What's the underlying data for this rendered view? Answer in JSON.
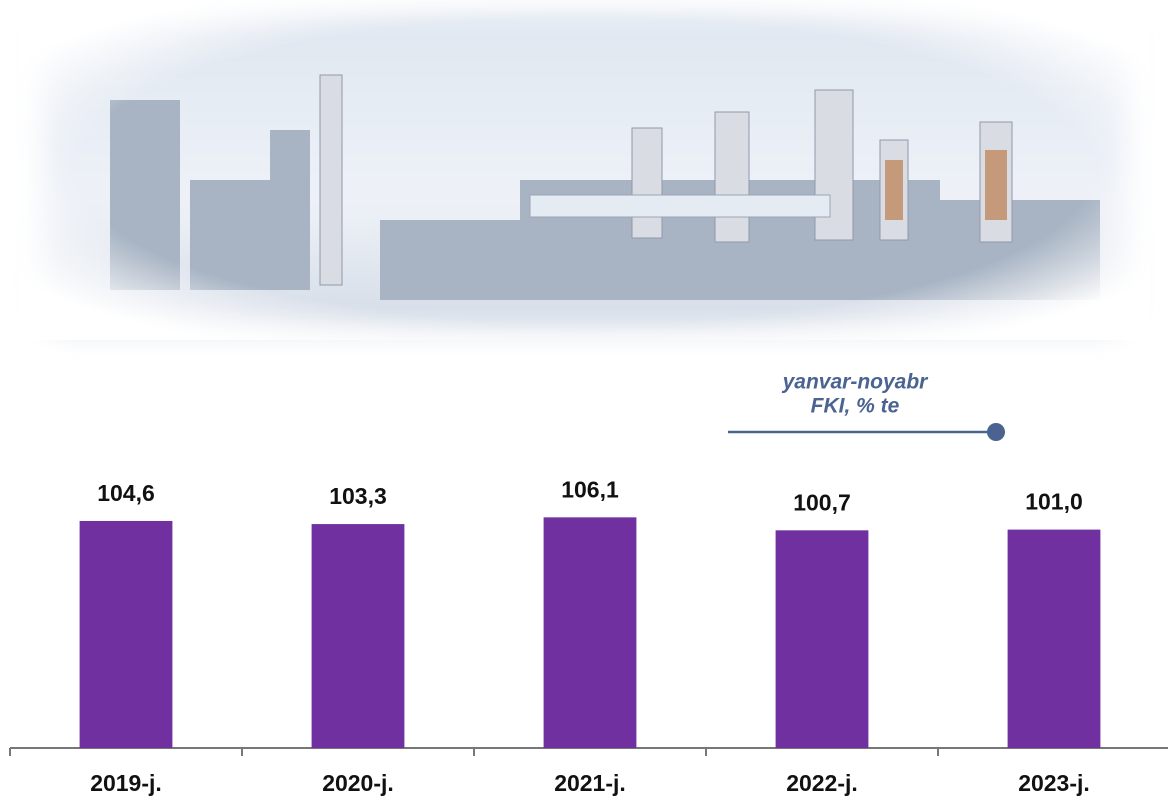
{
  "chart_data": {
    "type": "bar",
    "annotation_lines": [
      "yanvar-noyabr",
      "FKI, % te"
    ],
    "categories": [
      "2019-j.",
      "2020-j.",
      "2021-j.",
      "2022-j.",
      "2023-j."
    ],
    "values": [
      104.6,
      103.3,
      106.1,
      100.7,
      101.0
    ],
    "value_labels": [
      "104,6",
      "103,3",
      "106,1",
      "100,7",
      "101,0"
    ],
    "color": "#7030a0",
    "ylim": [
      10,
      110
    ]
  }
}
